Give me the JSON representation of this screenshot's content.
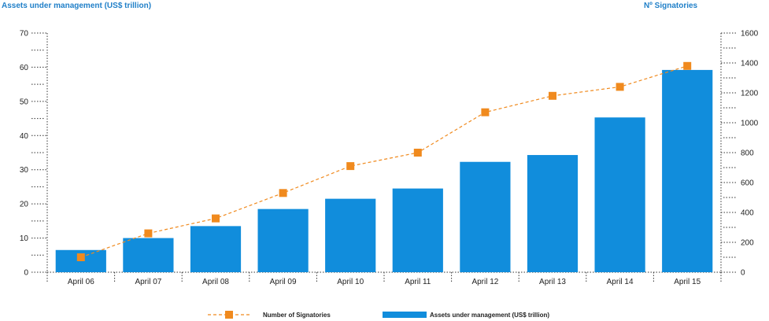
{
  "chart_data": {
    "type": "bar",
    "categories": [
      "April 06",
      "April 07",
      "April 08",
      "April 09",
      "April 10",
      "April 11",
      "April 12",
      "April 13",
      "April 14",
      "April 15"
    ],
    "series": [
      {
        "name": "Assets under management (US$ trillion)",
        "type": "bar",
        "axis": "left",
        "color": "#118ddc",
        "values": [
          6.5,
          10,
          13.5,
          18.5,
          21.5,
          24.5,
          32.3,
          34.3,
          45.3,
          59.2
        ]
      },
      {
        "name": "Number of Signatories",
        "type": "line",
        "axis": "right",
        "color": "#f08a1e",
        "line_style": "dashed",
        "marker": "square",
        "values": [
          100,
          260,
          360,
          530,
          710,
          800,
          1070,
          1180,
          1240,
          1380
        ]
      }
    ],
    "ylabel": "Assets under management (US$ trillion)",
    "y2label": "Nº Signatories",
    "ylim": [
      0,
      70
    ],
    "y2lim": [
      0,
      1600
    ],
    "yticks": [
      0,
      10,
      20,
      30,
      40,
      50,
      60,
      70
    ],
    "y2ticks": [
      0,
      200,
      400,
      600,
      800,
      1000,
      1200,
      1400,
      1600
    ],
    "grid": false,
    "legend_position": "bottom-center",
    "legend": [
      {
        "label": "Number of Signatories",
        "kind": "line"
      },
      {
        "label": "Assets under management (US$ trillion)",
        "kind": "bar"
      }
    ]
  }
}
